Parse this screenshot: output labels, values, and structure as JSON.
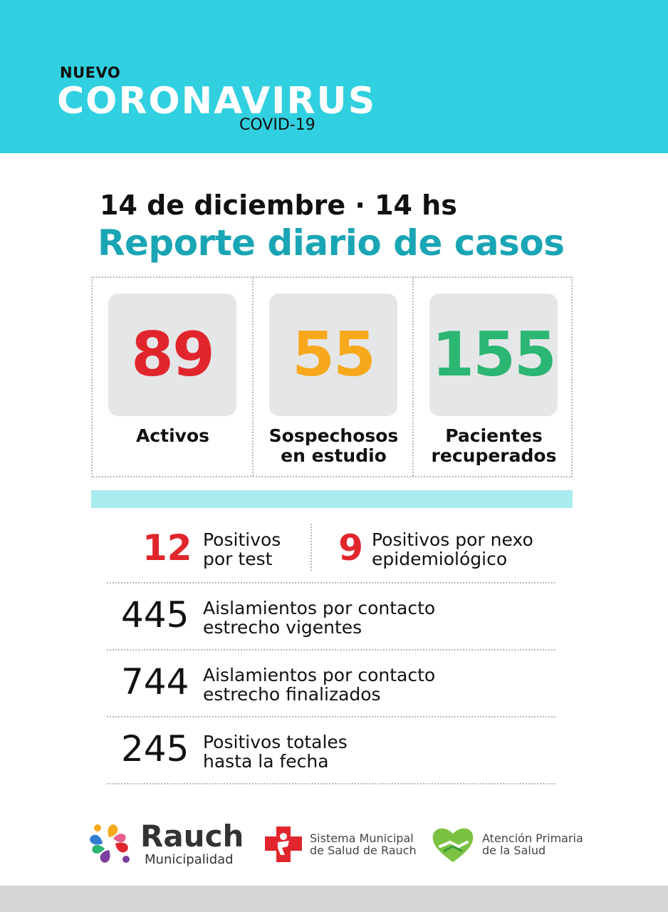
{
  "header": {
    "kicker": "NUEVO",
    "title": "CORONAVIRUS",
    "subtitle": "COVID-19",
    "background_color": "#31d0e0"
  },
  "report": {
    "date": "14 de diciembre · 14 hs",
    "title": "Reporte diario de casos"
  },
  "stats": [
    {
      "value": "89",
      "label": "Activos",
      "color": "#e0262c"
    },
    {
      "value": "55",
      "label": "Sospechosos\nen estudio",
      "color": "#f7a81b"
    },
    {
      "value": "155",
      "label": "Pacientes\nrecuperados",
      "color": "#2bb673"
    }
  ],
  "details": {
    "positivos_test": {
      "value": "12",
      "label": "Positivos\npor test"
    },
    "positivos_nexo": {
      "value": "9",
      "label": "Positivos por nexo\nepidemiológico"
    },
    "aislamientos_vigentes": {
      "value": "445",
      "label": "Aislamientos por contacto\nestrecho vigentes"
    },
    "aislamientos_finalizados": {
      "value": "744",
      "label": "Aislamientos por contacto\nestrecho finalizados"
    },
    "positivos_totales": {
      "value": "245",
      "label": "Positivos totales\nhasta la fecha"
    }
  },
  "footer": {
    "logo_rauch": {
      "name": "Rauch",
      "sub": "Municipalidad",
      "icon": "rauch-flower-icon"
    },
    "logo_salud": {
      "text": "Sistema Municipal\nde Salud de Rauch",
      "icon": "red-cross-icon"
    },
    "logo_atencion": {
      "text": "Atención Primaria\nde la Salud",
      "icon": "heart-hands-icon"
    }
  }
}
